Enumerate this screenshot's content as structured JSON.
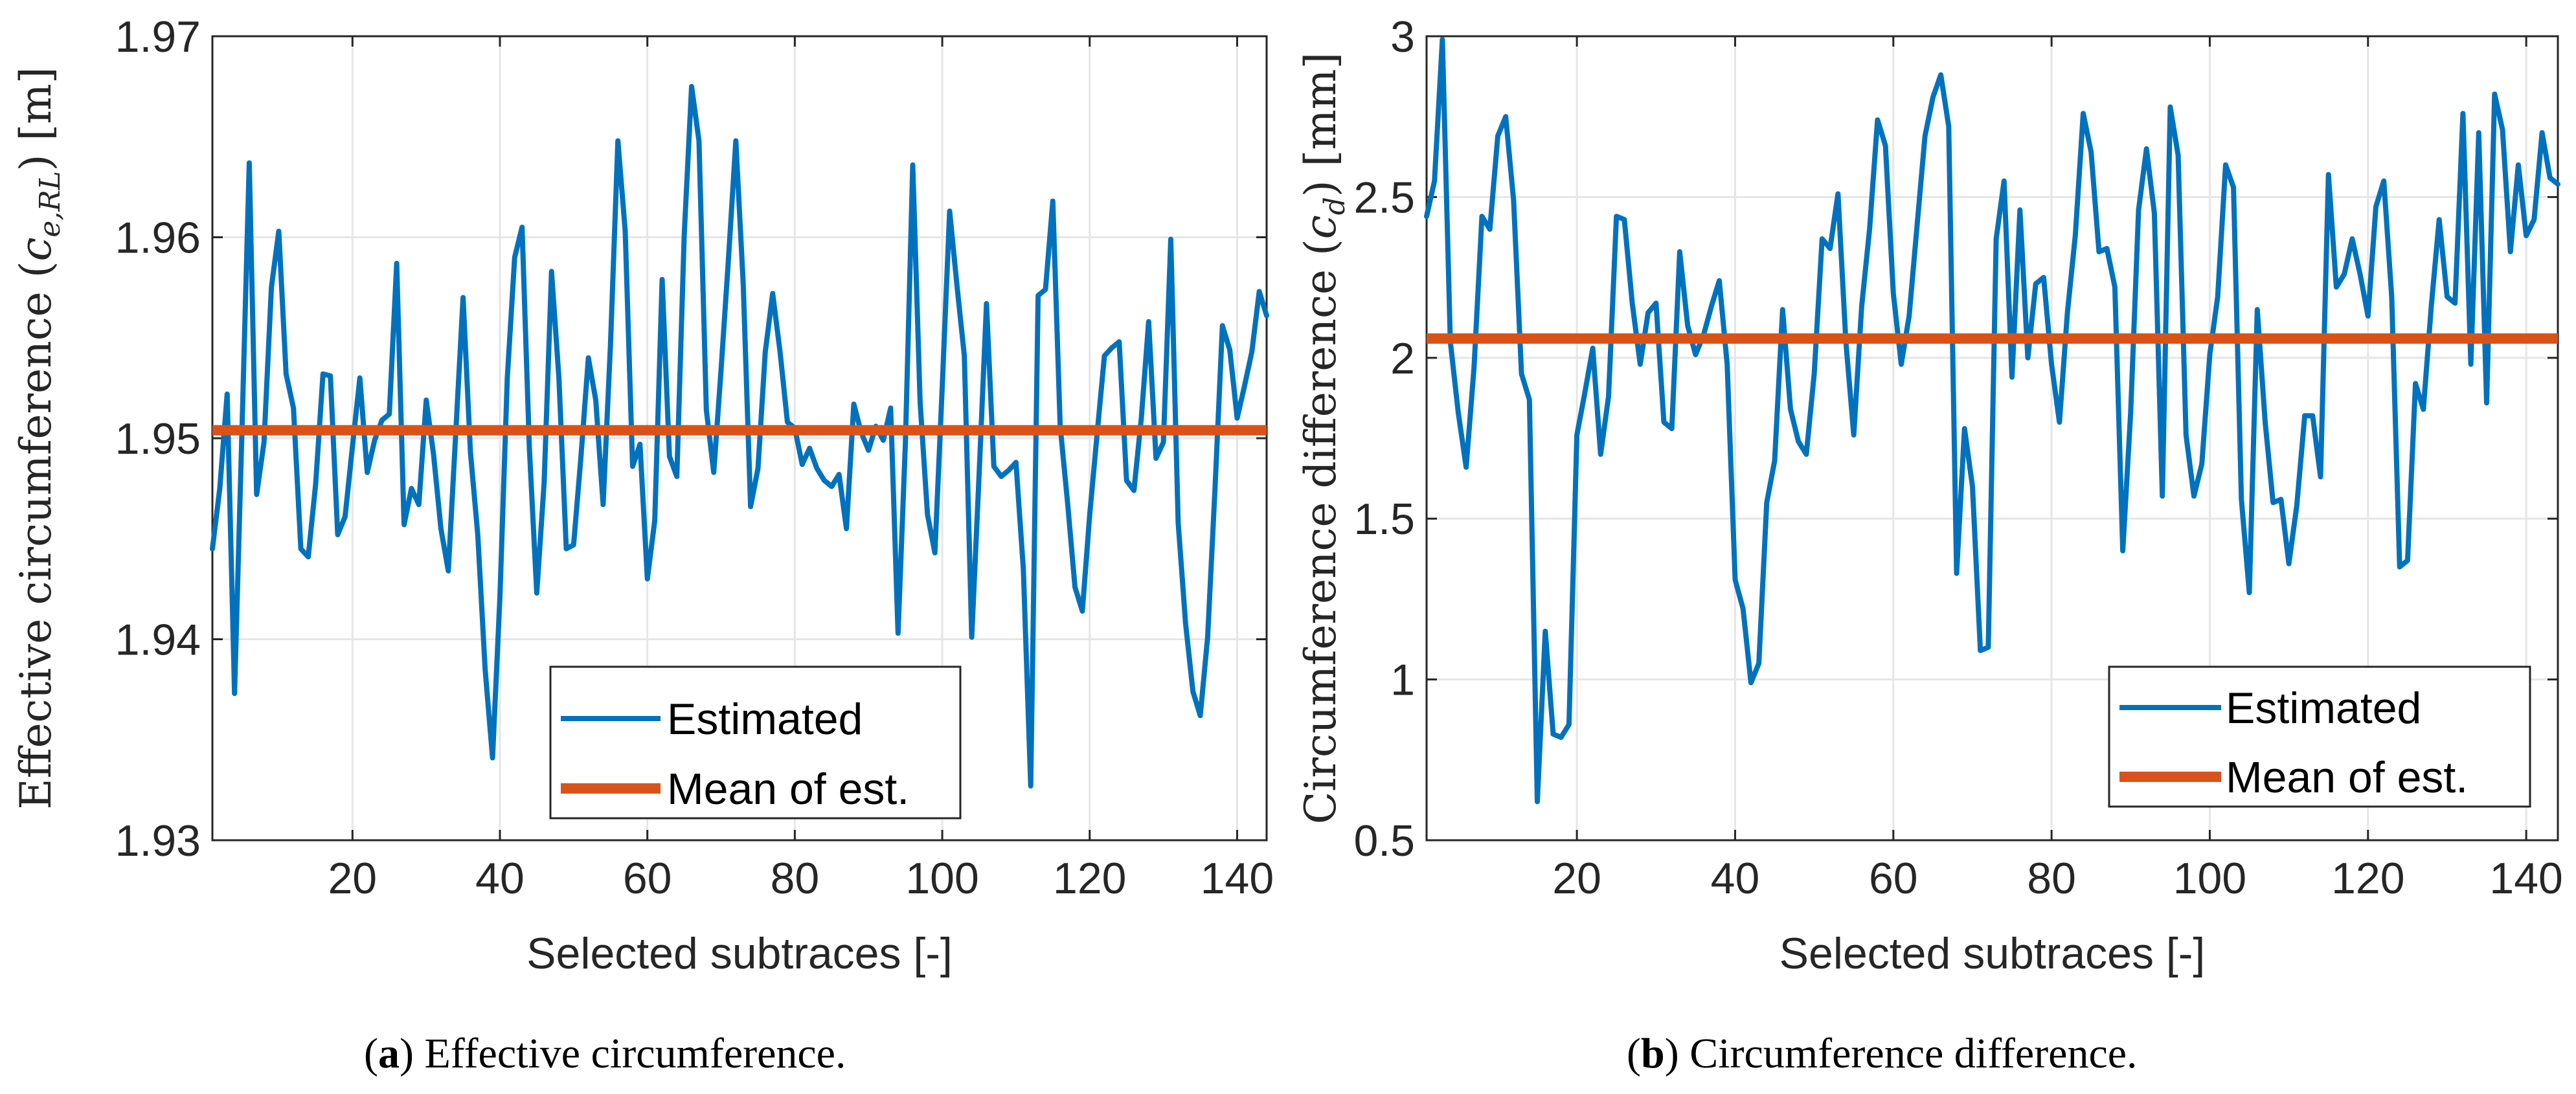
{
  "colors": {
    "estimated": "#0072BD",
    "mean": "#D95319",
    "grid": "#e6e6e6",
    "axis": "#262626"
  },
  "panels": [
    {
      "caption_letter": "a",
      "caption_text": "Effective circumference.",
      "ylabel_prefix": "Effective circumference (",
      "ylabel_var": "c",
      "ylabel_sub": "e,RL",
      "ylabel_suffix": ") [m]",
      "xlabel": "Selected subtraces [-]",
      "yticklabels": [
        "1.93",
        "1.94",
        "1.95",
        "1.96",
        "1.97"
      ],
      "xticklabels": [
        "20",
        "40",
        "60",
        "80",
        "100",
        "120",
        "140"
      ]
    },
    {
      "caption_letter": "b",
      "caption_text": "Circumference difference.",
      "ylabel_prefix": "Circumference difference (",
      "ylabel_var": "c",
      "ylabel_sub": "d",
      "ylabel_suffix": ") [mm]",
      "xlabel": "Selected subtraces [-]",
      "yticklabels": [
        "0.5",
        "1",
        "1.5",
        "2",
        "2.5",
        "3"
      ],
      "xticklabels": [
        "20",
        "40",
        "60",
        "80",
        "100",
        "120",
        "140"
      ]
    }
  ],
  "chart_data": [
    {
      "type": "line",
      "title": "",
      "xlabel": "Selected subtraces [-]",
      "ylabel": "Effective circumference (c_e,RL) [m]",
      "xlim": [
        1,
        144
      ],
      "ylim": [
        1.93,
        1.97
      ],
      "xticks": [
        20,
        40,
        60,
        80,
        100,
        120,
        140
      ],
      "yticks": [
        1.93,
        1.94,
        1.95,
        1.96,
        1.97
      ],
      "grid": true,
      "legend_position": "bottom-center",
      "series": [
        {
          "name": "Estimated",
          "x": [
            1,
            2,
            3,
            4,
            5,
            6,
            7,
            8,
            9,
            10,
            11,
            12,
            13,
            14,
            15,
            16,
            17,
            18,
            19,
            20,
            21,
            22,
            23,
            24,
            25,
            26,
            27,
            28,
            29,
            30,
            31,
            32,
            33,
            34,
            35,
            36,
            37,
            38,
            39,
            40,
            41,
            42,
            43,
            44,
            45,
            46,
            47,
            48,
            49,
            50,
            51,
            52,
            53,
            54,
            55,
            56,
            57,
            58,
            59,
            60,
            61,
            62,
            63,
            64,
            65,
            66,
            67,
            68,
            69,
            70,
            71,
            72,
            73,
            74,
            75,
            76,
            77,
            78,
            79,
            80,
            81,
            82,
            83,
            84,
            85,
            86,
            87,
            88,
            89,
            90,
            91,
            92,
            93,
            94,
            95,
            96,
            97,
            98,
            99,
            100,
            101,
            102,
            103,
            104,
            105,
            106,
            107,
            108,
            109,
            110,
            111,
            112,
            113,
            114,
            115,
            116,
            117,
            118,
            119,
            120,
            121,
            122,
            123,
            124,
            125,
            126,
            127,
            128,
            129,
            130,
            131,
            132,
            133,
            134,
            135,
            136,
            137,
            138,
            139,
            140,
            141,
            142,
            143,
            144
          ],
          "values": [
            1.9445,
            1.9475,
            1.9522,
            1.9373,
            1.9502,
            1.9637,
            1.9472,
            1.9498,
            1.9575,
            1.9603,
            1.9532,
            1.9515,
            1.9445,
            1.9441,
            1.9477,
            1.9532,
            1.9531,
            1.9452,
            1.9461,
            1.9496,
            1.953,
            1.9483,
            1.9499,
            1.9509,
            1.9512,
            1.9587,
            1.9457,
            1.9475,
            1.9467,
            1.9519,
            1.9492,
            1.9455,
            1.9434,
            1.9502,
            1.957,
            1.9493,
            1.9452,
            1.9385,
            1.9341,
            1.9421,
            1.953,
            1.959,
            1.9605,
            1.9495,
            1.9423,
            1.9478,
            1.9583,
            1.953,
            1.9445,
            1.9447,
            1.9491,
            1.954,
            1.9519,
            1.9467,
            1.9547,
            1.9648,
            1.9603,
            1.9486,
            1.9497,
            1.943,
            1.9459,
            1.9579,
            1.9491,
            1.9481,
            1.9601,
            1.9675,
            1.9648,
            1.9514,
            1.9483,
            1.9534,
            1.9589,
            1.9648,
            1.9577,
            1.9466,
            1.9485,
            1.9543,
            1.9572,
            1.9543,
            1.9508,
            1.9505,
            1.9487,
            1.9495,
            1.9485,
            1.9479,
            1.9476,
            1.9482,
            1.9455,
            1.9517,
            1.9503,
            1.9494,
            1.9506,
            1.9499,
            1.9515,
            1.9403,
            1.9498,
            1.9636,
            1.9518,
            1.9462,
            1.9443,
            1.9526,
            1.9613,
            1.9576,
            1.9541,
            1.9401,
            1.9482,
            1.9567,
            1.9486,
            1.9481,
            1.9484,
            1.9488,
            1.9435,
            1.9327,
            1.9571,
            1.9574,
            1.9618,
            1.9506,
            1.9468,
            1.9426,
            1.9414,
            1.9462,
            1.9502,
            1.9541,
            1.9545,
            1.9548,
            1.9479,
            1.9474,
            1.951,
            1.9558,
            1.949,
            1.9498,
            1.9599,
            1.9458,
            1.9408,
            1.9374,
            1.9362,
            1.9401,
            1.9475,
            1.9556,
            1.9544,
            1.951,
            1.9526,
            1.9543,
            1.9573,
            1.9561
          ]
        },
        {
          "name": "Mean of est.",
          "x": [
            1,
            144
          ],
          "values": [
            1.9504,
            1.9504
          ]
        }
      ]
    },
    {
      "type": "line",
      "title": "",
      "xlabel": "Selected subtraces [-]",
      "ylabel": "Circumference difference (c_d) [mm]",
      "xlim": [
        1,
        144
      ],
      "ylim": [
        0.5,
        3
      ],
      "xticks": [
        20,
        40,
        60,
        80,
        100,
        120,
        140
      ],
      "yticks": [
        0.5,
        1,
        1.5,
        2,
        2.5,
        3
      ],
      "grid": true,
      "legend_position": "bottom-right",
      "series": [
        {
          "name": "Estimated",
          "x": [
            1,
            2,
            3,
            4,
            5,
            6,
            7,
            8,
            9,
            10,
            11,
            12,
            13,
            14,
            15,
            16,
            17,
            18,
            19,
            20,
            21,
            22,
            23,
            24,
            25,
            26,
            27,
            28,
            29,
            30,
            31,
            32,
            33,
            34,
            35,
            36,
            37,
            38,
            39,
            40,
            41,
            42,
            43,
            44,
            45,
            46,
            47,
            48,
            49,
            50,
            51,
            52,
            53,
            54,
            55,
            56,
            57,
            58,
            59,
            60,
            61,
            62,
            63,
            64,
            65,
            66,
            67,
            68,
            69,
            70,
            71,
            72,
            73,
            74,
            75,
            76,
            77,
            78,
            79,
            80,
            81,
            82,
            83,
            84,
            85,
            86,
            87,
            88,
            89,
            90,
            91,
            92,
            93,
            94,
            95,
            96,
            97,
            98,
            99,
            100,
            101,
            102,
            103,
            104,
            105,
            106,
            107,
            108,
            109,
            110,
            111,
            112,
            113,
            114,
            115,
            116,
            117,
            118,
            119,
            120,
            121,
            122,
            123,
            124,
            125,
            126,
            127,
            128,
            129,
            130,
            131,
            132,
            133,
            134,
            135,
            136,
            137,
            138,
            139,
            140,
            141,
            142,
            143,
            144
          ],
          "values": [
            2.44,
            2.55,
            2.99,
            2.05,
            1.83,
            1.66,
            1.97,
            2.44,
            2.4,
            2.69,
            2.75,
            2.49,
            1.95,
            1.87,
            0.62,
            1.15,
            0.83,
            0.82,
            0.86,
            1.76,
            1.89,
            2.03,
            1.7,
            1.88,
            2.44,
            2.43,
            2.17,
            1.98,
            2.14,
            2.17,
            1.8,
            1.78,
            2.33,
            2.1,
            2.01,
            2.07,
            2.16,
            2.24,
            1.98,
            1.31,
            1.22,
            0.99,
            1.05,
            1.55,
            1.68,
            2.15,
            1.84,
            1.74,
            1.7,
            1.95,
            2.37,
            2.34,
            2.51,
            2.05,
            1.76,
            2.16,
            2.4,
            2.74,
            2.66,
            2.2,
            1.98,
            2.13,
            2.41,
            2.69,
            2.81,
            2.88,
            2.72,
            1.33,
            1.78,
            1.6,
            1.09,
            1.1,
            2.37,
            2.55,
            1.94,
            2.46,
            2.0,
            2.23,
            2.25,
            1.98,
            1.8,
            2.14,
            2.38,
            2.76,
            2.64,
            2.33,
            2.34,
            2.22,
            1.4,
            1.83,
            2.46,
            2.65,
            2.45,
            1.57,
            2.78,
            2.63,
            1.76,
            1.57,
            1.67,
            2.01,
            2.19,
            2.6,
            2.53,
            1.56,
            1.27,
            2.15,
            1.8,
            1.55,
            1.56,
            1.36,
            1.54,
            1.82,
            1.82,
            1.63,
            2.57,
            2.22,
            2.26,
            2.37,
            2.26,
            2.13,
            2.47,
            2.55,
            2.19,
            1.35,
            1.37,
            1.92,
            1.84,
            2.16,
            2.43,
            2.19,
            2.17,
            2.76,
            1.98,
            2.7,
            1.86,
            2.82,
            2.71,
            2.33,
            2.6,
            2.38,
            2.43,
            2.7,
            2.56,
            2.54
          ]
        },
        {
          "name": "Mean of est.",
          "x": [
            1,
            144
          ],
          "values": [
            2.06,
            2.06
          ]
        }
      ]
    }
  ]
}
